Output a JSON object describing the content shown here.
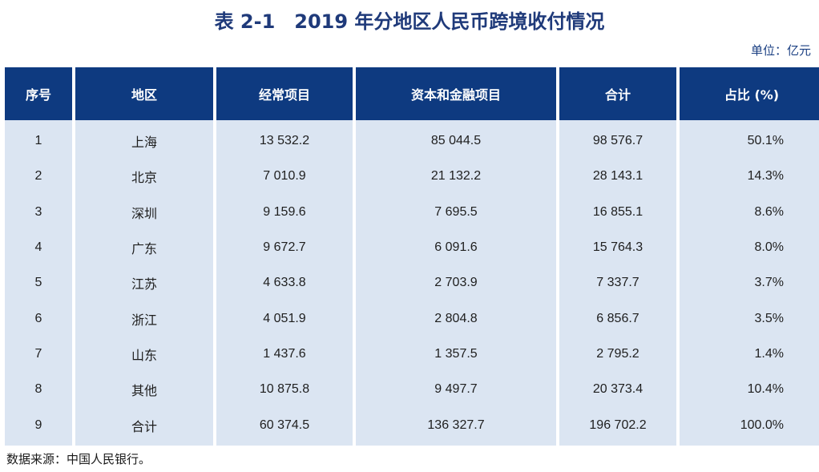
{
  "title": "表 2-1　2019 年分地区人民币跨境收付情况",
  "unit": "单位：亿元",
  "columns": [
    "序号",
    "地区",
    "经常项目",
    "资本和金融项目",
    "合计",
    "占比 (%)"
  ],
  "rows": [
    [
      "1",
      "上海",
      "13 532.2",
      "85 044.5",
      "98 576.7",
      "50.1%"
    ],
    [
      "2",
      "北京",
      "7 010.9",
      "21 132.2",
      "28 143.1",
      "14.3%"
    ],
    [
      "3",
      "深圳",
      "9 159.6",
      "7 695.5",
      "16 855.1",
      "8.6%"
    ],
    [
      "4",
      "广东",
      "9 672.7",
      "6 091.6",
      "15 764.3",
      "8.0%"
    ],
    [
      "5",
      "江苏",
      "4 633.8",
      "2 703.9",
      "7 337.7",
      "3.7%"
    ],
    [
      "6",
      "浙江",
      "4 051.9",
      "2 804.8",
      "6 856.7",
      "3.5%"
    ],
    [
      "7",
      "山东",
      "1 437.6",
      "1 357.5",
      "2 795.2",
      "1.4%"
    ],
    [
      "8",
      "其他",
      "10 875.8",
      "9 497.7",
      "20 373.4",
      "10.4%"
    ],
    [
      "9",
      "合计",
      "60 374.5",
      "136 327.7",
      "196 702.2",
      "100.0%"
    ]
  ],
  "source": "数据来源：中国人民银行。",
  "colors": {
    "header_bg": "#0e3a80",
    "row_bg": "#dbe5f2",
    "title": "#1f3a7a"
  }
}
